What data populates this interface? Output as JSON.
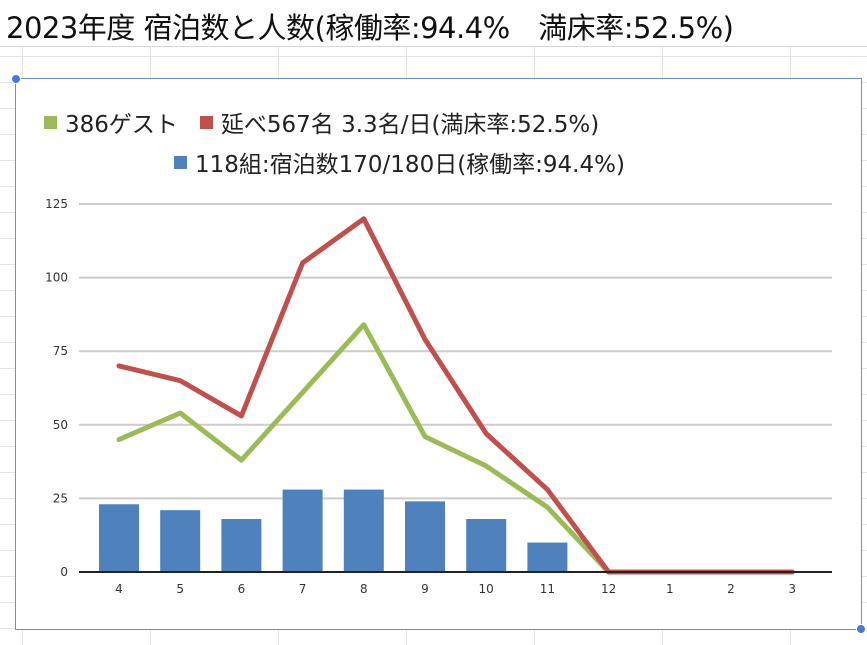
{
  "page": {
    "title": "2023年度 宿泊数と人数(稼働率:94.4%　満床率:52.5%)"
  },
  "colors": {
    "guests": "#9bbb59",
    "people": "#c0504d",
    "groups": "#4f81bd",
    "grid": "#cccccc",
    "axis": "#222222",
    "frame": "#6b8fd6"
  },
  "chart_data": {
    "type": "bar",
    "categories": [
      "4",
      "5",
      "6",
      "7",
      "8",
      "9",
      "10",
      "11",
      "12",
      "1",
      "2",
      "3"
    ],
    "ylim": [
      0,
      125
    ],
    "yticks": [
      0,
      25,
      50,
      75,
      100,
      125
    ],
    "grid": true,
    "legend_position": "top",
    "series": [
      {
        "name": "386ゲスト",
        "type": "line",
        "color": "#9bbb59",
        "values": [
          45,
          54,
          38,
          61,
          84,
          46,
          36,
          22,
          0,
          0,
          0,
          0
        ]
      },
      {
        "name": "延べ567名 3.3名/日(満床率:52.5%)",
        "type": "line",
        "color": "#c0504d",
        "values": [
          70,
          65,
          53,
          105,
          120,
          79,
          47,
          28,
          0,
          0,
          0,
          0
        ]
      },
      {
        "name": "118組:宿泊数170/180日(稼働率:94.4%)",
        "type": "bar",
        "color": "#4f81bd",
        "values": [
          23,
          21,
          18,
          28,
          28,
          24,
          18,
          10,
          0,
          0,
          0,
          0
        ]
      }
    ]
  }
}
